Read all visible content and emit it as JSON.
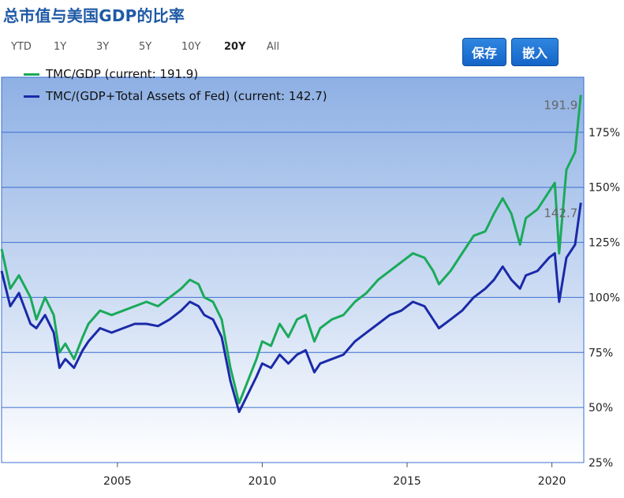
{
  "page": {
    "title": "总市值与美国GDP的比率"
  },
  "ranges": [
    "YTD",
    "1Y",
    "3Y",
    "5Y",
    "10Y",
    "20Y",
    "All"
  ],
  "active_range": "20Y",
  "buttons": {
    "save": "保存",
    "embed": "嵌入"
  },
  "colors": {
    "tmc_gdp": "#1aaa5a",
    "tmc_gdp_fed": "#1a2aa8",
    "grid": "#3b6fd0"
  },
  "chart_data": {
    "type": "line",
    "ylim": [
      25,
      200
    ],
    "xlim": [
      2001.0,
      2021.1
    ],
    "y_ticks": [
      25,
      50,
      75,
      100,
      125,
      150,
      175
    ],
    "y_tick_labels": [
      "25%",
      "50%",
      "75%",
      "100%",
      "125%",
      "150%",
      "175%"
    ],
    "x_ticks": [
      2005,
      2010,
      2015,
      2020
    ],
    "x_tick_labels": [
      "2005",
      "2010",
      "2015",
      "2020"
    ],
    "current_labels": [
      "191.9",
      "142.7"
    ],
    "series": [
      {
        "name": "TMC/GDP (current: 191.9)",
        "color": "#1aaa5a",
        "points": [
          [
            2001.0,
            122
          ],
          [
            2001.3,
            104
          ],
          [
            2001.6,
            110
          ],
          [
            2002.0,
            100
          ],
          [
            2002.2,
            90
          ],
          [
            2002.5,
            100
          ],
          [
            2002.8,
            92
          ],
          [
            2003.0,
            75
          ],
          [
            2003.2,
            79
          ],
          [
            2003.5,
            72
          ],
          [
            2003.8,
            82
          ],
          [
            2004.0,
            88
          ],
          [
            2004.4,
            94
          ],
          [
            2004.8,
            92
          ],
          [
            2005.2,
            94
          ],
          [
            2005.6,
            96
          ],
          [
            2006.0,
            98
          ],
          [
            2006.4,
            96
          ],
          [
            2006.8,
            100
          ],
          [
            2007.2,
            104
          ],
          [
            2007.5,
            108
          ],
          [
            2007.8,
            106
          ],
          [
            2008.0,
            100
          ],
          [
            2008.3,
            98
          ],
          [
            2008.6,
            90
          ],
          [
            2008.9,
            68
          ],
          [
            2009.2,
            52
          ],
          [
            2009.5,
            62
          ],
          [
            2009.8,
            72
          ],
          [
            2010.0,
            80
          ],
          [
            2010.3,
            78
          ],
          [
            2010.6,
            88
          ],
          [
            2010.9,
            82
          ],
          [
            2011.2,
            90
          ],
          [
            2011.5,
            92
          ],
          [
            2011.8,
            80
          ],
          [
            2012.0,
            86
          ],
          [
            2012.4,
            90
          ],
          [
            2012.8,
            92
          ],
          [
            2013.2,
            98
          ],
          [
            2013.6,
            102
          ],
          [
            2014.0,
            108
          ],
          [
            2014.4,
            112
          ],
          [
            2014.8,
            116
          ],
          [
            2015.2,
            120
          ],
          [
            2015.6,
            118
          ],
          [
            2015.9,
            112
          ],
          [
            2016.1,
            106
          ],
          [
            2016.5,
            112
          ],
          [
            2016.9,
            120
          ],
          [
            2017.3,
            128
          ],
          [
            2017.7,
            130
          ],
          [
            2018.0,
            138
          ],
          [
            2018.3,
            145
          ],
          [
            2018.6,
            138
          ],
          [
            2018.9,
            124
          ],
          [
            2019.1,
            136
          ],
          [
            2019.5,
            140
          ],
          [
            2019.9,
            148
          ],
          [
            2020.1,
            152
          ],
          [
            2020.25,
            120
          ],
          [
            2020.5,
            158
          ],
          [
            2020.8,
            166
          ],
          [
            2021.0,
            192
          ]
        ]
      },
      {
        "name": "TMC/(GDP+Total Assets of Fed) (current: 142.7)",
        "color": "#1a2aa8",
        "points": [
          [
            2001.0,
            112
          ],
          [
            2001.3,
            96
          ],
          [
            2001.6,
            102
          ],
          [
            2002.0,
            88
          ],
          [
            2002.2,
            86
          ],
          [
            2002.5,
            92
          ],
          [
            2002.8,
            84
          ],
          [
            2003.0,
            68
          ],
          [
            2003.2,
            72
          ],
          [
            2003.5,
            68
          ],
          [
            2003.8,
            76
          ],
          [
            2004.0,
            80
          ],
          [
            2004.4,
            86
          ],
          [
            2004.8,
            84
          ],
          [
            2005.2,
            86
          ],
          [
            2005.6,
            88
          ],
          [
            2006.0,
            88
          ],
          [
            2006.4,
            87
          ],
          [
            2006.8,
            90
          ],
          [
            2007.2,
            94
          ],
          [
            2007.5,
            98
          ],
          [
            2007.8,
            96
          ],
          [
            2008.0,
            92
          ],
          [
            2008.3,
            90
          ],
          [
            2008.6,
            82
          ],
          [
            2008.9,
            62
          ],
          [
            2009.2,
            48
          ],
          [
            2009.5,
            56
          ],
          [
            2009.8,
            64
          ],
          [
            2010.0,
            70
          ],
          [
            2010.3,
            68
          ],
          [
            2010.6,
            74
          ],
          [
            2010.9,
            70
          ],
          [
            2011.2,
            74
          ],
          [
            2011.5,
            76
          ],
          [
            2011.8,
            66
          ],
          [
            2012.0,
            70
          ],
          [
            2012.4,
            72
          ],
          [
            2012.8,
            74
          ],
          [
            2013.2,
            80
          ],
          [
            2013.6,
            84
          ],
          [
            2014.0,
            88
          ],
          [
            2014.4,
            92
          ],
          [
            2014.8,
            94
          ],
          [
            2015.2,
            98
          ],
          [
            2015.6,
            96
          ],
          [
            2015.9,
            90
          ],
          [
            2016.1,
            86
          ],
          [
            2016.5,
            90
          ],
          [
            2016.9,
            94
          ],
          [
            2017.3,
            100
          ],
          [
            2017.7,
            104
          ],
          [
            2018.0,
            108
          ],
          [
            2018.3,
            114
          ],
          [
            2018.6,
            108
          ],
          [
            2018.9,
            104
          ],
          [
            2019.1,
            110
          ],
          [
            2019.5,
            112
          ],
          [
            2019.9,
            118
          ],
          [
            2020.1,
            120
          ],
          [
            2020.25,
            98
          ],
          [
            2020.5,
            118
          ],
          [
            2020.8,
            124
          ],
          [
            2021.0,
            143
          ]
        ]
      }
    ]
  }
}
